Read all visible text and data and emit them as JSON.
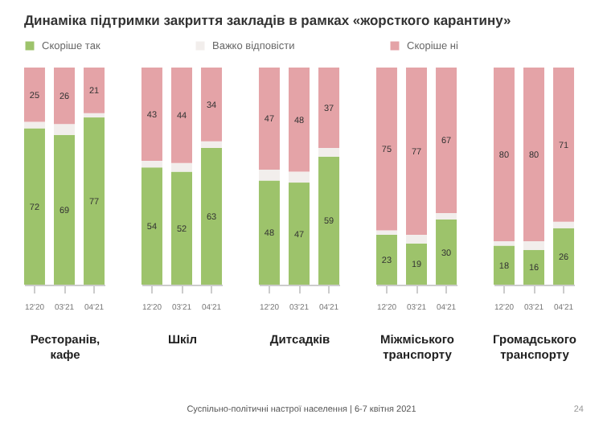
{
  "chart_data": [
    {
      "type": "bar",
      "stacked": true,
      "title": "Динаміка підтримки закриття закладів в рамках «жорсткого карантину»",
      "xlabel": "Ресторанів, кафе",
      "categories": [
        "12'20",
        "03'21",
        "04'21"
      ],
      "ylim": [
        0,
        100
      ],
      "tick_labels": "x",
      "legend": "top",
      "annotations": [
        "Суспільно-політичні настрої населення | 6-7 квітня 2021",
        "24"
      ],
      "series": [
        {
          "name": "Скоріше так",
          "color": "#9dc36b",
          "values": [
            72,
            69,
            77
          ],
          "value_labels": [
            "72",
            "69",
            "77"
          ]
        },
        {
          "name": "Важко відповісти",
          "color": "#f2eeec",
          "values": [
            3,
            5,
            2
          ],
          "value_labels": [
            null,
            null,
            null
          ]
        },
        {
          "name": "Скоріше ні",
          "color": "#e4a3a7",
          "values": [
            25,
            26,
            21
          ],
          "value_labels": [
            "25",
            "26",
            "21"
          ]
        }
      ]
    },
    {
      "type": "bar",
      "stacked": true,
      "xlabel": "Шкіл",
      "categories": [
        "12'20",
        "03'21",
        "04'21"
      ],
      "ylim": [
        0,
        100
      ],
      "tick_labels": "x",
      "series": [
        {
          "color": "#9dc36b",
          "values": [
            54,
            52,
            63
          ],
          "value_labels": [
            "54",
            "52",
            "63"
          ]
        },
        {
          "color": "#f2eeec",
          "values": [
            3,
            4,
            3
          ],
          "value_labels": [
            null,
            null,
            null
          ]
        },
        {
          "color": "#e4a3a7",
          "values": [
            43,
            44,
            34
          ],
          "value_labels": [
            "43",
            "44",
            "34"
          ]
        }
      ]
    },
    {
      "type": "bar",
      "stacked": true,
      "xlabel": "Дитсадків",
      "categories": [
        "12'20",
        "03'21",
        "04'21"
      ],
      "ylim": [
        0,
        100
      ],
      "tick_labels": "x",
      "series": [
        {
          "color": "#9dc36b",
          "values": [
            48,
            47,
            59
          ],
          "value_labels": [
            "48",
            "47",
            "59"
          ]
        },
        {
          "color": "#f2eeec",
          "values": [
            5,
            5,
            4
          ],
          "value_labels": [
            null,
            null,
            null
          ]
        },
        {
          "color": "#e4a3a7",
          "values": [
            47,
            48,
            37
          ],
          "value_labels": [
            "47",
            "48",
            "37"
          ]
        }
      ]
    },
    {
      "type": "bar",
      "stacked": true,
      "xlabel": "Міжміського транспорту",
      "categories": [
        "12'20",
        "03'21",
        "04'21"
      ],
      "ylim": [
        0,
        100
      ],
      "tick_labels": "x",
      "series": [
        {
          "color": "#9dc36b",
          "values": [
            23,
            19,
            30
          ],
          "value_labels": [
            "23",
            "19",
            "30"
          ]
        },
        {
          "color": "#f2eeec",
          "values": [
            2,
            4,
            3
          ],
          "value_labels": [
            null,
            null,
            null
          ]
        },
        {
          "color": "#e4a3a7",
          "values": [
            75,
            77,
            67
          ],
          "value_labels": [
            "75",
            "77",
            "67"
          ]
        }
      ]
    },
    {
      "type": "bar",
      "stacked": true,
      "xlabel": "Громадського транспорту",
      "categories": [
        "12'20",
        "03'21",
        "04'21"
      ],
      "ylim": [
        0,
        100
      ],
      "tick_labels": "x",
      "series": [
        {
          "color": "#9dc36b",
          "values": [
            18,
            16,
            26
          ],
          "value_labels": [
            "18",
            "16",
            "26"
          ]
        },
        {
          "color": "#f2eeec",
          "values": [
            2,
            4,
            3
          ],
          "value_labels": [
            null,
            null,
            null
          ]
        },
        {
          "color": "#e4a3a7",
          "values": [
            80,
            80,
            71
          ],
          "value_labels": [
            "80",
            "80",
            "71"
          ]
        }
      ]
    }
  ]
}
